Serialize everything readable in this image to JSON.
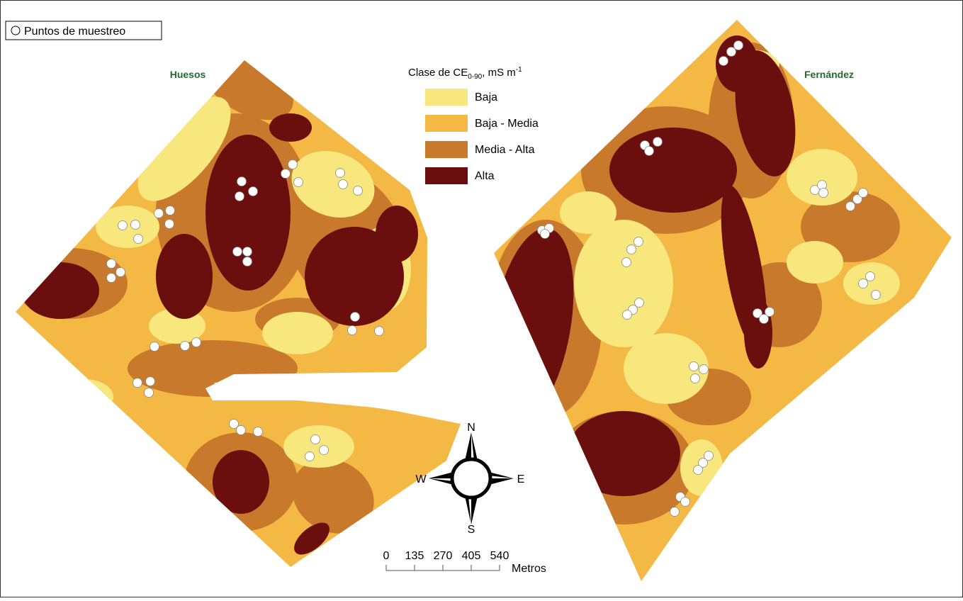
{
  "sampling_legend": "Puntos de muestreo",
  "fields": [
    {
      "label": "Huesos"
    },
    {
      "label": "Fernández"
    }
  ],
  "legend": {
    "title": {
      "main": "Clase de CE",
      "subscript": "0-90",
      "unit": ", mS m",
      "superscript": "-1"
    },
    "classes": [
      {
        "label": "Baja",
        "color": "#f7e77c"
      },
      {
        "label": "Baja - Media",
        "color": "#f4b844"
      },
      {
        "label": "Media - Alta",
        "color": "#c8792c"
      },
      {
        "label": "Alta",
        "color": "#6a0e0e"
      }
    ]
  },
  "compass": {
    "north": "N",
    "south": "S",
    "east": "E",
    "west": "W"
  },
  "scale_bar": {
    "ticks": [
      0,
      135,
      270,
      405,
      540
    ],
    "unit": "Metros"
  }
}
